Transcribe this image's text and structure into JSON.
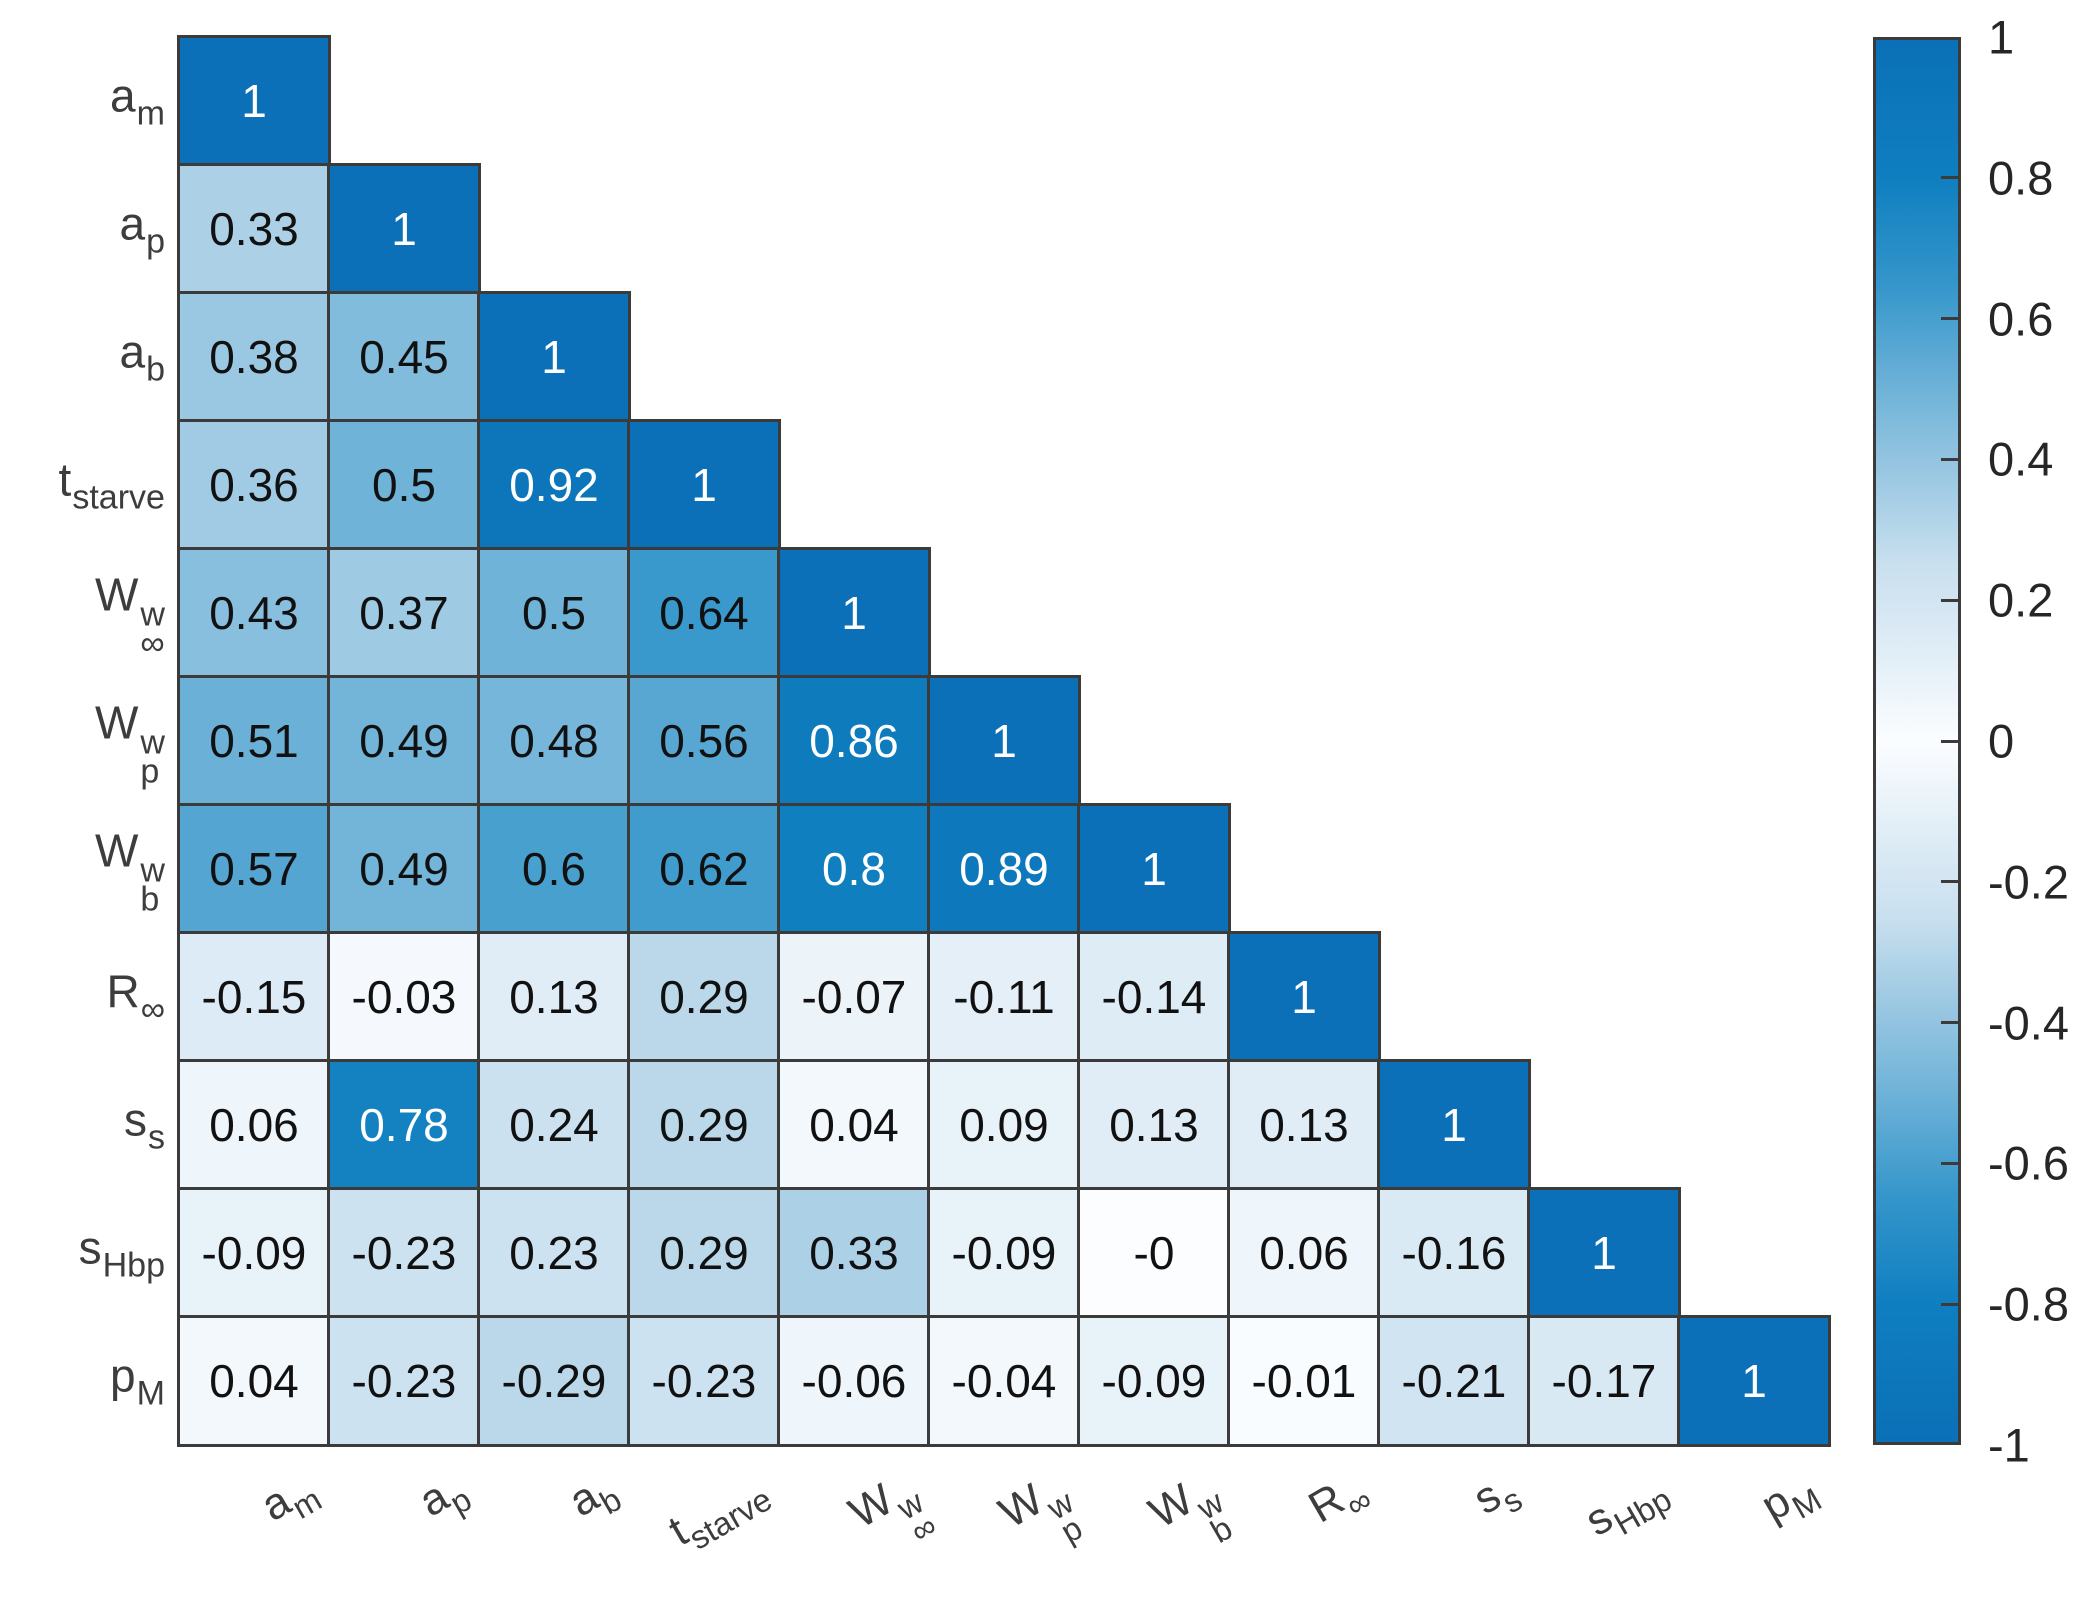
{
  "figure": {
    "background": "#ffffff",
    "kind": "lower-triangular correlation matrix heatmap with colorbar"
  },
  "chart_data": {
    "type": "heatmap",
    "title": "",
    "xlabel": "",
    "ylabel": "",
    "legend_position": "right-colorbar",
    "grid": "dark cell borders",
    "variables": [
      {
        "id": "a_m",
        "base": "a",
        "sub": "m"
      },
      {
        "id": "a_p",
        "base": "a",
        "sub": "p"
      },
      {
        "id": "a_b",
        "base": "a",
        "sub": "b"
      },
      {
        "id": "t_starve",
        "base": "t",
        "sub": "starve"
      },
      {
        "id": "W_w_inf",
        "base": "W",
        "sup": "w",
        "sub": "∞"
      },
      {
        "id": "W_w_p",
        "base": "W",
        "sup": "w",
        "sub": "p"
      },
      {
        "id": "W_w_b",
        "base": "W",
        "sup": "w",
        "sub": "b"
      },
      {
        "id": "R_inf",
        "base": "R",
        "sub": "∞"
      },
      {
        "id": "s_s",
        "base": "s",
        "sub": "s"
      },
      {
        "id": "s_Hbp",
        "base": "s",
        "sub": "Hbp"
      },
      {
        "id": "p_M",
        "base": "p",
        "sub": "M"
      }
    ],
    "matrix_display": [
      [
        "1"
      ],
      [
        "0.33",
        "1"
      ],
      [
        "0.38",
        "0.45",
        "1"
      ],
      [
        "0.36",
        "0.5",
        "0.92",
        "1"
      ],
      [
        "0.43",
        "0.37",
        "0.5",
        "0.64",
        "1"
      ],
      [
        "0.51",
        "0.49",
        "0.48",
        "0.56",
        "0.86",
        "1"
      ],
      [
        "0.57",
        "0.49",
        "0.6",
        "0.62",
        "0.8",
        "0.89",
        "1"
      ],
      [
        "-0.15",
        "-0.03",
        "0.13",
        "0.29",
        "-0.07",
        "-0.11",
        "-0.14",
        "1"
      ],
      [
        "0.06",
        "0.78",
        "0.24",
        "0.29",
        "0.04",
        "0.09",
        "0.13",
        "0.13",
        "1"
      ],
      [
        "-0.09",
        "-0.23",
        "0.23",
        "0.29",
        "0.33",
        "-0.09",
        "-0",
        "0.06",
        "-0.16",
        "1"
      ],
      [
        "0.04",
        "-0.23",
        "-0.29",
        "-0.23",
        "-0.06",
        "-0.04",
        "-0.09",
        "-0.01",
        "-0.21",
        "-0.17",
        "1"
      ]
    ],
    "colorbar": {
      "min": -1,
      "max": 1,
      "tick_labels": [
        "1",
        "0.8",
        "0.6",
        "0.4",
        "0.2",
        "0",
        "-0.2",
        "-0.4",
        "-0.6",
        "-0.8",
        "-1"
      ]
    },
    "colors": {
      "colormap_stops": [
        [
          0.0,
          "#fbfdff"
        ],
        [
          0.12,
          "#e2eef7"
        ],
        [
          0.25,
          "#c9e0ef"
        ],
        [
          0.35,
          "#a5cde5"
        ],
        [
          0.5,
          "#6fb3d8"
        ],
        [
          0.65,
          "#3596cb"
        ],
        [
          0.8,
          "#0f7fc0"
        ],
        [
          1.0,
          "#0b70b7"
        ]
      ],
      "grid_line": "#3b3b3b",
      "cell_text_dark": "#111111",
      "cell_text_light": "#ffffff",
      "axis_label_text": "#3d3d3d",
      "tick_text": "#262626",
      "white_text_threshold": 0.7
    }
  }
}
